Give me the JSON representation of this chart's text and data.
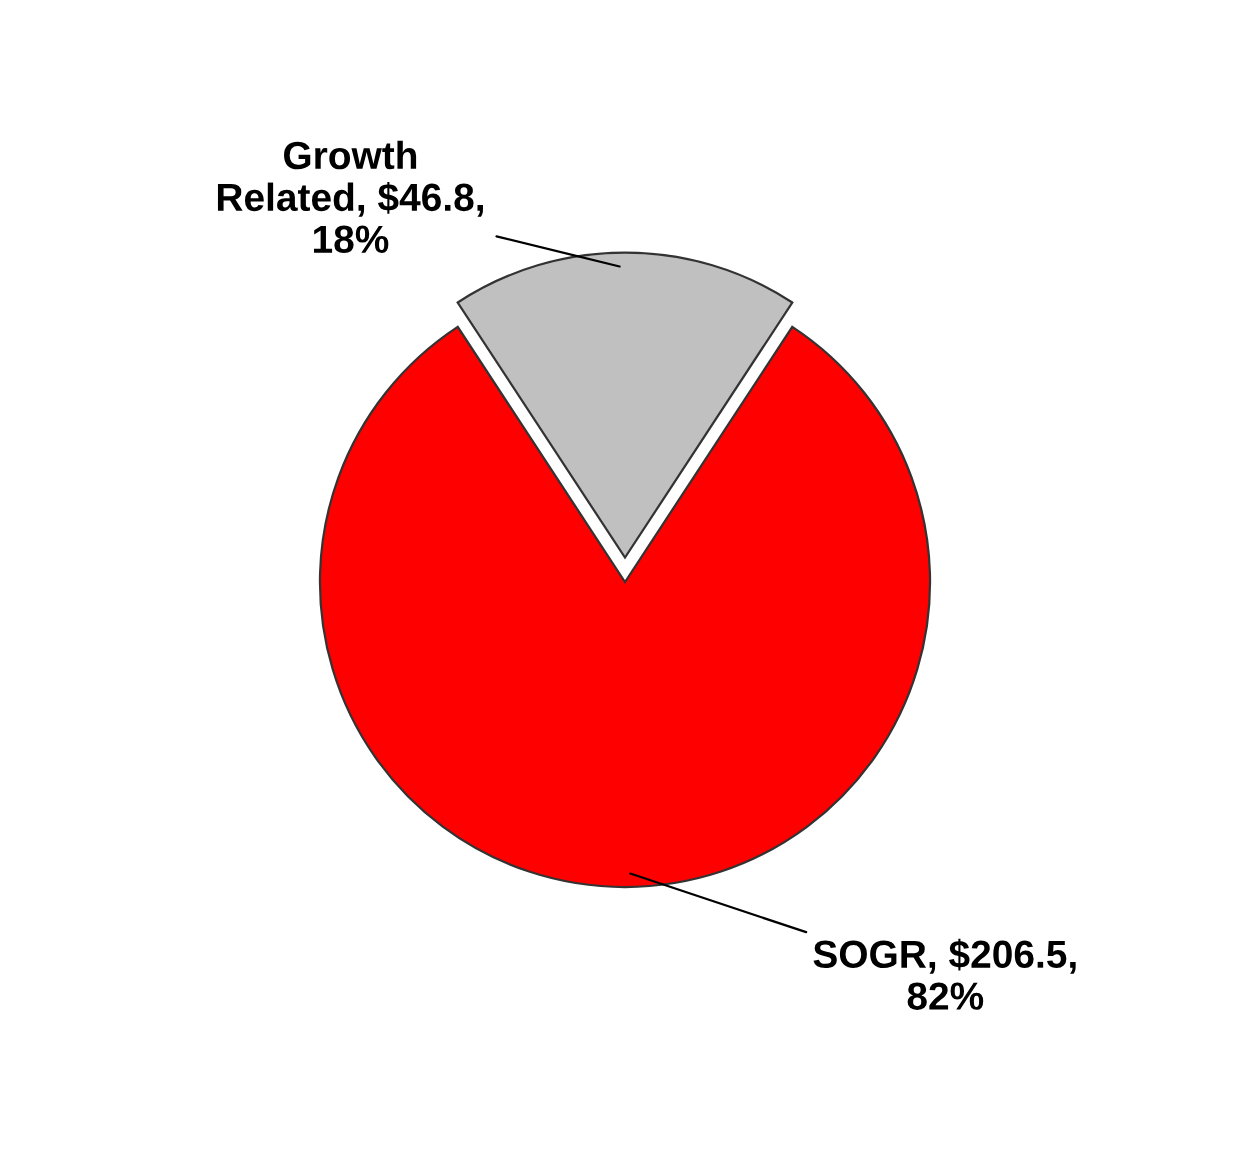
{
  "chart_data": {
    "type": "pie",
    "categories": [
      "Growth Related",
      "SOGR"
    ],
    "values": [
      46.8,
      206.5
    ],
    "colors": [
      "#c0c0c0",
      "#ff0000"
    ],
    "value_labels": [
      "$46.8, 18%",
      "$206.5, 82%"
    ]
  }
}
